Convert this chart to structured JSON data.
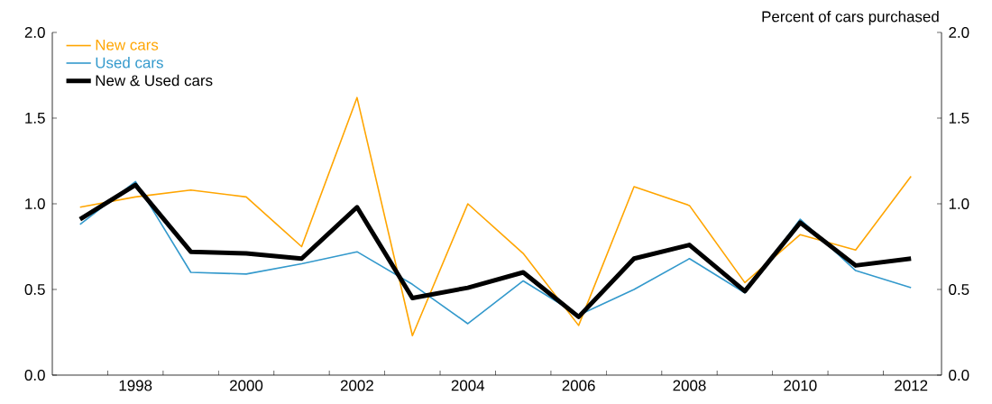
{
  "chart_data": {
    "type": "line",
    "y2label": "Percent of cars purchased",
    "x": [
      1997,
      1998,
      1999,
      2000,
      2001,
      2002,
      2003,
      2004,
      2005,
      2006,
      2007,
      2008,
      2009,
      2010,
      2011,
      2012
    ],
    "series": [
      {
        "name": "New cars",
        "color": "#ffa500",
        "values": [
          0.98,
          1.04,
          1.08,
          1.04,
          0.75,
          1.62,
          0.23,
          1.0,
          0.71,
          0.29,
          1.1,
          0.99,
          0.54,
          0.82,
          0.73,
          1.16
        ]
      },
      {
        "name": "Used cars",
        "color": "#3399cc",
        "values": [
          0.88,
          1.13,
          0.6,
          0.59,
          0.65,
          0.72,
          0.53,
          0.3,
          0.55,
          0.35,
          0.5,
          0.68,
          0.48,
          0.91,
          0.61,
          0.51
        ]
      },
      {
        "name": "New & Used cars",
        "color": "#000000",
        "values": [
          0.91,
          1.11,
          0.72,
          0.71,
          0.68,
          0.98,
          0.45,
          0.51,
          0.6,
          0.34,
          0.68,
          0.76,
          0.49,
          0.89,
          0.64,
          0.68
        ]
      }
    ],
    "xlim": [
      1996.5,
      2012.55
    ],
    "xticks": [
      {
        "value": 1997.5,
        "label": null
      },
      1998,
      {
        "value": 1998.5,
        "label": null
      },
      {
        "value": 1999.5,
        "label": null
      },
      2000,
      {
        "value": 2000.5,
        "label": null
      },
      {
        "value": 2001.5,
        "label": null
      },
      2002,
      {
        "value": 2002.5,
        "label": null
      },
      {
        "value": 2003.5,
        "label": null
      },
      2004,
      {
        "value": 2004.5,
        "label": null
      },
      {
        "value": 2005.5,
        "label": null
      },
      2006,
      {
        "value": 2006.5,
        "label": null
      },
      {
        "value": 2007.5,
        "label": null
      },
      2008,
      {
        "value": 2008.5,
        "label": null
      },
      {
        "value": 2009.5,
        "label": null
      },
      2010,
      {
        "value": 2010.5,
        "label": null
      },
      {
        "value": 2011.5,
        "label": null
      },
      2012
    ],
    "ylim": [
      0,
      2
    ],
    "yticks": [
      {
        "value": 0,
        "label": "0.0"
      },
      {
        "value": 0.5,
        "label": "0.5"
      },
      {
        "value": 1,
        "label": "1.0"
      },
      {
        "value": 1.5,
        "label": "1.5"
      },
      {
        "value": 2,
        "label": "2.0"
      }
    ],
    "y2lim": [
      0,
      2
    ],
    "y2ticks": [
      {
        "value": 0,
        "label": "0.0"
      },
      {
        "value": 0.5,
        "label": "0.5"
      },
      {
        "value": 1,
        "label": "1.0"
      },
      {
        "value": 1.5,
        "label": "1.5"
      },
      {
        "value": 2,
        "label": "2.0"
      }
    ],
    "legend": "top left",
    "grid": false,
    "line_style": "solid",
    "marker": "none"
  }
}
